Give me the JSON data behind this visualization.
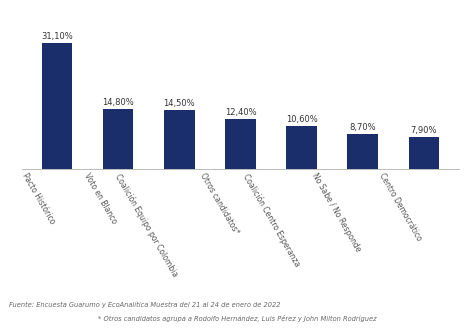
{
  "categories": [
    "Pacto Histórico",
    "Voto en Blanco",
    "Coalición Equipo por Colombia",
    "Otros candidatos*",
    "Coalición Centro Esperanza",
    "No Sabe / No Responde",
    "Centro Democrático"
  ],
  "values": [
    31.1,
    14.8,
    14.5,
    12.4,
    10.6,
    8.7,
    7.9
  ],
  "labels": [
    "31,10%",
    "14,80%",
    "14,50%",
    "12,40%",
    "10,60%",
    "8,70%",
    "7,90%"
  ],
  "bar_color": "#1a2e6c",
  "background_color": "#ffffff",
  "ylim": [
    0,
    38
  ],
  "footnote1": "Fuente: Encuesta Guarumo y EcoAnalítica Muestra del 21 al 24 de enero de 2022",
  "footnote2": "* Otros candidatos agrupa a Rodolfo Hernández, Luis Pérez y John Milton Rodríguez",
  "value_fontsize": 6.0,
  "label_fontsize": 5.5,
  "footnote_fontsize": 4.8,
  "label_rotation": -60,
  "bar_width": 0.5
}
